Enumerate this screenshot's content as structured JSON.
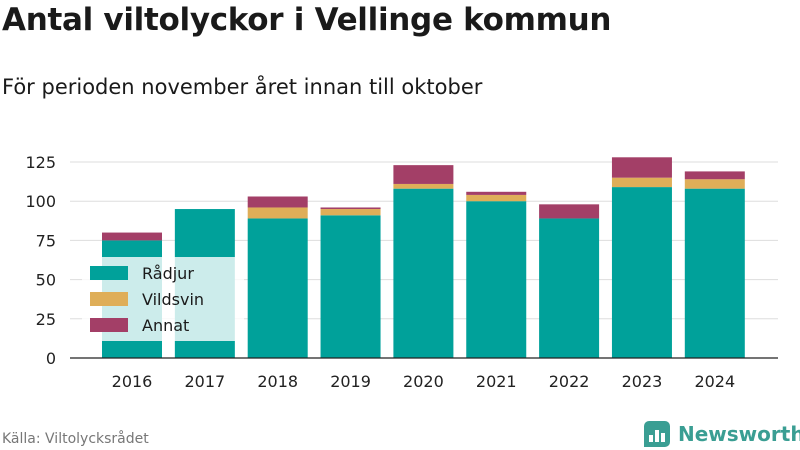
{
  "header": {
    "title": "Antal viltolyckor i Vellinge kommun",
    "subtitle": "För perioden november året innan till oktober"
  },
  "footer": {
    "source": "Källa: Viltolycksrådet",
    "brand": "Newsworthy",
    "brand_icon": "bar-chart-logo-icon"
  },
  "colors": {
    "rådjur": "#00a19a",
    "vildsvin": "#dfae58",
    "annat": "#a33f67",
    "grid": "#dddddd",
    "brand": "#3a9e93"
  },
  "chart_data": {
    "type": "bar",
    "stacked": true,
    "categories": [
      "2016",
      "2017",
      "2018",
      "2019",
      "2020",
      "2021",
      "2022",
      "2023",
      "2024"
    ],
    "series": [
      {
        "name": "Rådjur",
        "values": [
          75,
          95,
          89,
          91,
          108,
          100,
          89,
          109,
          108
        ]
      },
      {
        "name": "Vildsvin",
        "values": [
          0,
          0,
          7,
          4,
          3,
          4,
          0,
          6,
          6
        ]
      },
      {
        "name": "Annat",
        "values": [
          5,
          0,
          7,
          1,
          12,
          2,
          9,
          13,
          5
        ]
      }
    ],
    "yticks": [
      0,
      25,
      50,
      75,
      100,
      125
    ],
    "ylim": [
      0,
      130
    ],
    "grid": true,
    "legend_position": "bottom-left"
  }
}
